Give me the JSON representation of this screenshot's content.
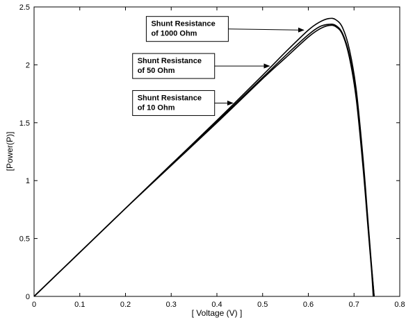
{
  "chart_data": {
    "type": "line",
    "title": "",
    "xlabel": "[ Voltage (V) ]",
    "ylabel": "[Power(P)]",
    "xlim": [
      0,
      0.8
    ],
    "ylim": [
      0,
      2.5
    ],
    "xticks": [
      0,
      0.1,
      0.2,
      0.3,
      0.4,
      0.5,
      0.6,
      0.7,
      0.8
    ],
    "yticks": [
      0,
      0.5,
      1,
      1.5,
      2,
      2.5
    ],
    "xtick_labels": [
      "0",
      "0.1",
      "0.2",
      "0.3",
      "0.4",
      "0.5",
      "0.6",
      "0.7",
      "0.8"
    ],
    "ytick_labels": [
      "0",
      "0.5",
      "1",
      "1.5",
      "2",
      "2.5"
    ],
    "grid": false,
    "line_color": "#000000",
    "series": [
      {
        "x": [
          0,
          0.1,
          0.2,
          0.3,
          0.4,
          0.5,
          0.55,
          0.6,
          0.625,
          0.645,
          0.66,
          0.675,
          0.69,
          0.705,
          0.72,
          0.73,
          0.738,
          0.744
        ],
        "y": [
          0,
          0.38,
          0.76,
          1.14,
          1.52,
          1.91,
          2.11,
          2.3,
          2.37,
          2.4,
          2.39,
          2.32,
          2.13,
          1.78,
          1.18,
          0.68,
          0.28,
          0
        ]
      },
      {
        "x": [
          0,
          0.1,
          0.2,
          0.3,
          0.4,
          0.5,
          0.55,
          0.6,
          0.625,
          0.645,
          0.66,
          0.675,
          0.69,
          0.705,
          0.72,
          0.73,
          0.738,
          0.744
        ],
        "y": [
          0,
          0.38,
          0.76,
          1.14,
          1.51,
          1.89,
          2.08,
          2.26,
          2.33,
          2.35,
          2.34,
          2.27,
          2.08,
          1.73,
          1.14,
          0.65,
          0.26,
          0
        ]
      },
      {
        "x": [
          0,
          0.1,
          0.2,
          0.3,
          0.4,
          0.5,
          0.55,
          0.6,
          0.625,
          0.645,
          0.66,
          0.675,
          0.69,
          0.705,
          0.72,
          0.73,
          0.738,
          0.742
        ],
        "y": [
          0,
          0.38,
          0.76,
          1.13,
          1.5,
          1.88,
          2.06,
          2.24,
          2.31,
          2.34,
          2.33,
          2.26,
          2.06,
          1.7,
          1.1,
          0.62,
          0.24,
          0
        ]
      }
    ],
    "annotations": [
      {
        "lines": [
          "Shunt Resistance",
          "of 1000 Ohm"
        ],
        "arrow_to": [
          0.59,
          2.3
        ],
        "box_anchor": [
          0.425,
          2.31
        ]
      },
      {
        "lines": [
          "Shunt Resistance",
          "of 50 Ohm"
        ],
        "arrow_to": [
          0.515,
          1.99
        ],
        "box_anchor": [
          0.395,
          1.99
        ]
      },
      {
        "lines": [
          "Shunt Resistance",
          "of 10 Ohm"
        ],
        "arrow_to": [
          0.435,
          1.67
        ],
        "box_anchor": [
          0.395,
          1.67
        ]
      }
    ]
  }
}
